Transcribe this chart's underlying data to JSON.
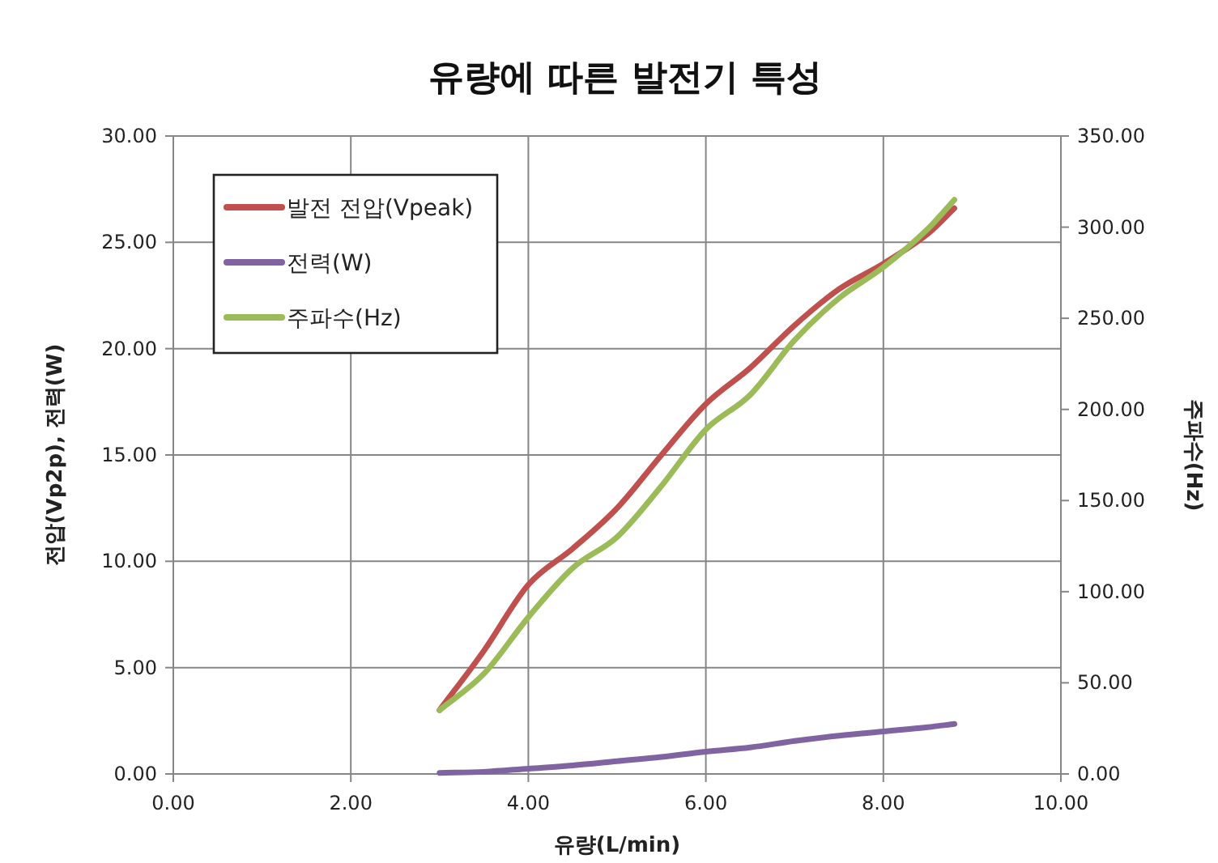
{
  "chart_data": {
    "type": "line",
    "title": "유량에 따른 발전기 특성",
    "xlabel": "유량(L/min)",
    "ylabel": "전압(Vp2p), 전력(W)",
    "y2label": "주파수(Hz)",
    "x": [
      3,
      3.5,
      4,
      4.5,
      5,
      5.5,
      6,
      6.5,
      7,
      7.5,
      8,
      8.5,
      8.8
    ],
    "series": [
      {
        "name": "발전 전압(Vpeak)",
        "color": "#c0504d",
        "values": [
          3.0,
          5.8,
          8.9,
          10.6,
          12.5,
          15.0,
          17.4,
          19.1,
          21.1,
          22.8,
          24.0,
          25.4,
          26.6
        ]
      },
      {
        "name": "전력(W)",
        "color": "#8064a2",
        "values": [
          0.05,
          0.1,
          0.25,
          0.4,
          0.6,
          0.8,
          1.05,
          1.25,
          1.55,
          1.8,
          2.0,
          2.2,
          2.35
        ]
      },
      {
        "name": "주파수(Hz)",
        "color": "#9bbb59",
        "axis": "y2",
        "values": [
          35,
          55,
          86,
          113,
          130,
          158,
          189,
          208,
          238,
          261,
          278,
          299,
          315
        ]
      }
    ],
    "xlim": [
      0,
      10
    ],
    "xticks": [
      {
        "value": 0,
        "label": "0.00"
      },
      {
        "value": 2,
        "label": "2.00"
      },
      {
        "value": 4,
        "label": "4.00"
      },
      {
        "value": 6,
        "label": "6.00"
      },
      {
        "value": 8,
        "label": "8.00"
      },
      {
        "value": 10,
        "label": "10.00"
      }
    ],
    "ylim": [
      0,
      30
    ],
    "yticks": [
      {
        "value": 0,
        "label": "0.00"
      },
      {
        "value": 5,
        "label": "5.00"
      },
      {
        "value": 10,
        "label": "10.00"
      },
      {
        "value": 15,
        "label": "15.00"
      },
      {
        "value": 20,
        "label": "20.00"
      },
      {
        "value": 25,
        "label": "25.00"
      },
      {
        "value": 30,
        "label": "30.00"
      }
    ],
    "y2lim": [
      0,
      350
    ],
    "y2ticks": [
      {
        "value": 0,
        "label": "0.00"
      },
      {
        "value": 50,
        "label": "50.00"
      },
      {
        "value": 100,
        "label": "100.00"
      },
      {
        "value": 150,
        "label": "150.00"
      },
      {
        "value": 200,
        "label": "200.00"
      },
      {
        "value": 250,
        "label": "250.00"
      },
      {
        "value": 300,
        "label": "300.00"
      },
      {
        "value": 350,
        "label": "350.00"
      }
    ],
    "grid": true,
    "legend": "top left",
    "marker": "none",
    "line_style": "solid"
  }
}
